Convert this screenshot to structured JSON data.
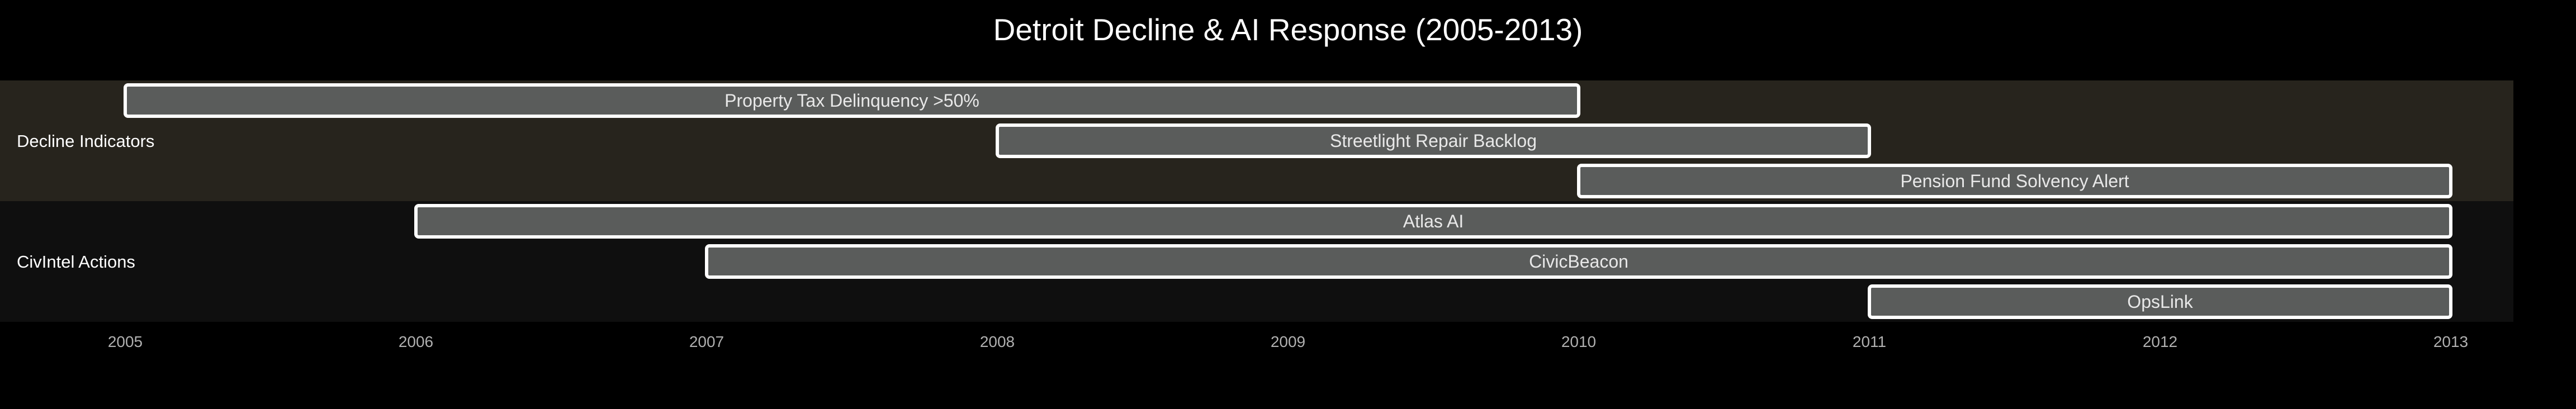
{
  "chart_data": {
    "type": "timeline",
    "title": "Detroit Decline & AI Response (2005-2013)",
    "x_ticks": [
      "2005",
      "2006",
      "2007",
      "2008",
      "2009",
      "2010",
      "2011",
      "2012",
      "2013"
    ],
    "xlim": [
      2005,
      2013
    ],
    "lanes": [
      {
        "name": "Decline Indicators",
        "color": "#27241d",
        "bars": [
          {
            "label": "Property Tax Delinquency >50%",
            "start": 2005.0,
            "end": 2010.0
          },
          {
            "label": "Streetlight Repair Backlog",
            "start": 2008.0,
            "end": 2011.0
          },
          {
            "label": "Pension Fund Solvency Alert",
            "start": 2010.0,
            "end": 2013.0
          }
        ]
      },
      {
        "name": "CivIntel Actions",
        "color": "#0f0f0f",
        "bars": [
          {
            "label": "Atlas AI",
            "start": 2006.0,
            "end": 2013.0
          },
          {
            "label": "CivicBeacon",
            "start": 2007.0,
            "end": 2013.0
          },
          {
            "label": "OpsLink",
            "start": 2011.0,
            "end": 2013.0
          }
        ]
      }
    ],
    "bar_color": "#5a5c5b",
    "bar_border_color": "#ffffff",
    "background_color": "#000000"
  }
}
